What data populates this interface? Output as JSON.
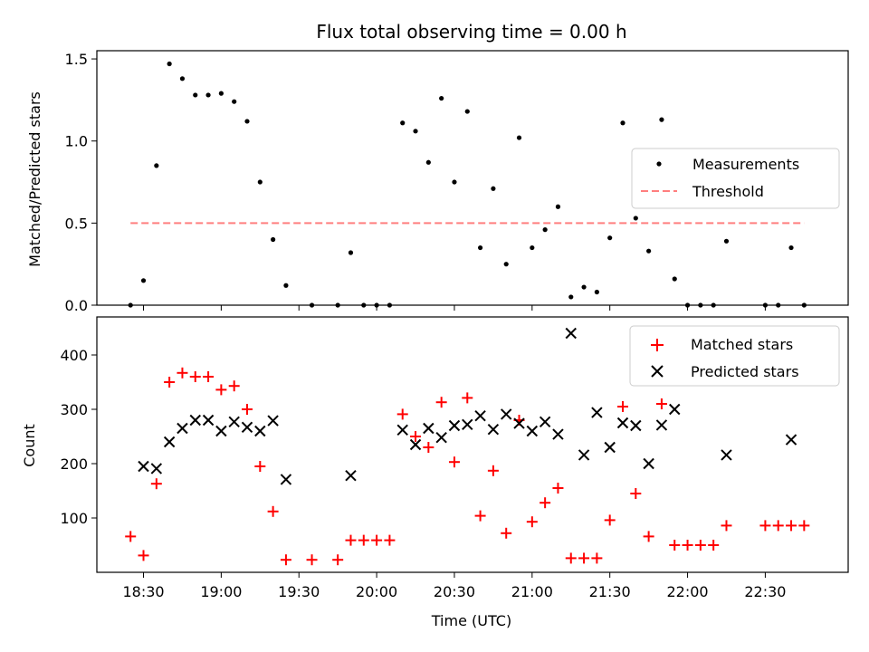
{
  "chart_data": [
    {
      "type": "scatter",
      "title": "Flux total observing time = 0.00 h",
      "xlabel": "",
      "ylabel": "Matched/Predicted stars",
      "ylim": [
        0,
        1.55
      ],
      "yticks": [
        0.0,
        0.5,
        1.0,
        1.5
      ],
      "ytick_labels": [
        "0.0",
        "0.5",
        "1.0",
        "1.5"
      ],
      "xlim": [
        "18:12",
        "23:02"
      ],
      "xticks": [
        "18:30",
        "19:00",
        "19:30",
        "20:00",
        "20:30",
        "21:00",
        "21:30",
        "22:00",
        "22:30"
      ],
      "grid": false,
      "legend_position": "center right",
      "series": [
        {
          "name": "Measurements",
          "kind": "scatter",
          "marker": "dot",
          "color": "#000000",
          "x": [
            "18:25",
            "18:30",
            "18:35",
            "18:40",
            "18:45",
            "18:50",
            "18:55",
            "19:00",
            "19:05",
            "19:10",
            "19:15",
            "19:20",
            "19:25",
            "19:35",
            "19:45",
            "19:50",
            "19:55",
            "20:00",
            "20:05",
            "20:10",
            "20:15",
            "20:20",
            "20:25",
            "20:30",
            "20:35",
            "20:40",
            "20:45",
            "20:50",
            "20:55",
            "21:00",
            "21:05",
            "21:10",
            "21:15",
            "21:20",
            "21:25",
            "21:30",
            "21:35",
            "21:40",
            "21:45",
            "21:50",
            "21:55",
            "22:00",
            "22:05",
            "22:10",
            "22:15",
            "22:30",
            "22:35",
            "22:40",
            "22:45"
          ],
          "y": [
            0.0,
            0.15,
            0.85,
            1.47,
            1.38,
            1.28,
            1.28,
            1.29,
            1.24,
            1.12,
            0.75,
            0.4,
            0.12,
            0.0,
            0.0,
            0.32,
            0.0,
            0.0,
            0.0,
            1.11,
            1.06,
            0.87,
            1.26,
            0.75,
            1.18,
            0.35,
            0.71,
            0.25,
            1.02,
            0.35,
            0.46,
            0.6,
            0.05,
            0.11,
            0.08,
            0.41,
            1.11,
            0.53,
            0.33,
            1.13,
            0.16,
            0.0,
            0.0,
            0.0,
            0.39,
            0.0,
            0.0,
            0.35,
            0.0
          ]
        },
        {
          "name": "Threshold",
          "kind": "line",
          "style": "dashed",
          "color": "#ff7f7f",
          "x": [
            "18:25",
            "22:45"
          ],
          "y": [
            0.5,
            0.5
          ]
        }
      ]
    },
    {
      "type": "scatter",
      "title": "",
      "xlabel": "Time (UTC)",
      "ylabel": "Count",
      "ylim": [
        0,
        470
      ],
      "yticks": [
        100,
        200,
        300,
        400
      ],
      "ytick_labels": [
        "100",
        "200",
        "300",
        "400"
      ],
      "xlim": [
        "18:12",
        "23:02"
      ],
      "xticks": [
        "18:30",
        "19:00",
        "19:30",
        "20:00",
        "20:30",
        "21:00",
        "21:30",
        "22:00",
        "22:30"
      ],
      "xtick_labels": [
        "18:30",
        "19:00",
        "19:30",
        "20:00",
        "20:30",
        "21:00",
        "21:30",
        "22:00",
        "22:30"
      ],
      "grid": false,
      "legend_position": "upper right",
      "series": [
        {
          "name": "Matched stars",
          "kind": "scatter",
          "marker": "plus",
          "color": "#ff0000",
          "x": [
            "18:25",
            "18:30",
            "18:35",
            "18:40",
            "18:45",
            "18:50",
            "18:55",
            "19:00",
            "19:05",
            "19:10",
            "19:15",
            "19:20",
            "19:25",
            "19:35",
            "19:45",
            "19:50",
            "19:55",
            "20:00",
            "20:05",
            "20:10",
            "20:15",
            "20:20",
            "20:25",
            "20:30",
            "20:35",
            "20:40",
            "20:45",
            "20:50",
            "20:55",
            "21:00",
            "21:05",
            "21:10",
            "21:15",
            "21:20",
            "21:25",
            "21:30",
            "21:35",
            "21:40",
            "21:45",
            "21:50",
            "21:55",
            "22:00",
            "22:05",
            "22:10",
            "22:15",
            "22:30",
            "22:35",
            "22:40",
            "22:45"
          ],
          "y": [
            66,
            31,
            163,
            350,
            367,
            360,
            360,
            336,
            343,
            300,
            195,
            112,
            23,
            23,
            23,
            59,
            59,
            59,
            59,
            291,
            250,
            230,
            313,
            203,
            321,
            104,
            187,
            72,
            280,
            93,
            128,
            155,
            26,
            26,
            26,
            96,
            305,
            145,
            66,
            310,
            50,
            50,
            50,
            50,
            86,
            86,
            86,
            86,
            86
          ]
        },
        {
          "name": "Predicted stars",
          "kind": "scatter",
          "marker": "x",
          "color": "#000000",
          "x": [
            "18:30",
            "18:35",
            "18:40",
            "18:45",
            "18:50",
            "18:55",
            "19:00",
            "19:05",
            "19:10",
            "19:15",
            "19:20",
            "19:25",
            "19:50",
            "20:10",
            "20:15",
            "20:20",
            "20:25",
            "20:30",
            "20:35",
            "20:40",
            "20:45",
            "20:50",
            "20:55",
            "21:00",
            "21:05",
            "21:10",
            "21:15",
            "21:20",
            "21:25",
            "21:30",
            "21:35",
            "21:40",
            "21:45",
            "21:50",
            "21:55",
            "22:15",
            "22:40"
          ],
          "y": [
            195,
            191,
            240,
            265,
            280,
            280,
            260,
            277,
            267,
            260,
            279,
            171,
            178,
            262,
            235,
            265,
            248,
            270,
            272,
            288,
            263,
            291,
            274,
            260,
            277,
            254,
            440,
            216,
            294,
            230,
            275,
            270,
            200,
            271,
            300,
            216,
            244
          ]
        }
      ]
    }
  ]
}
